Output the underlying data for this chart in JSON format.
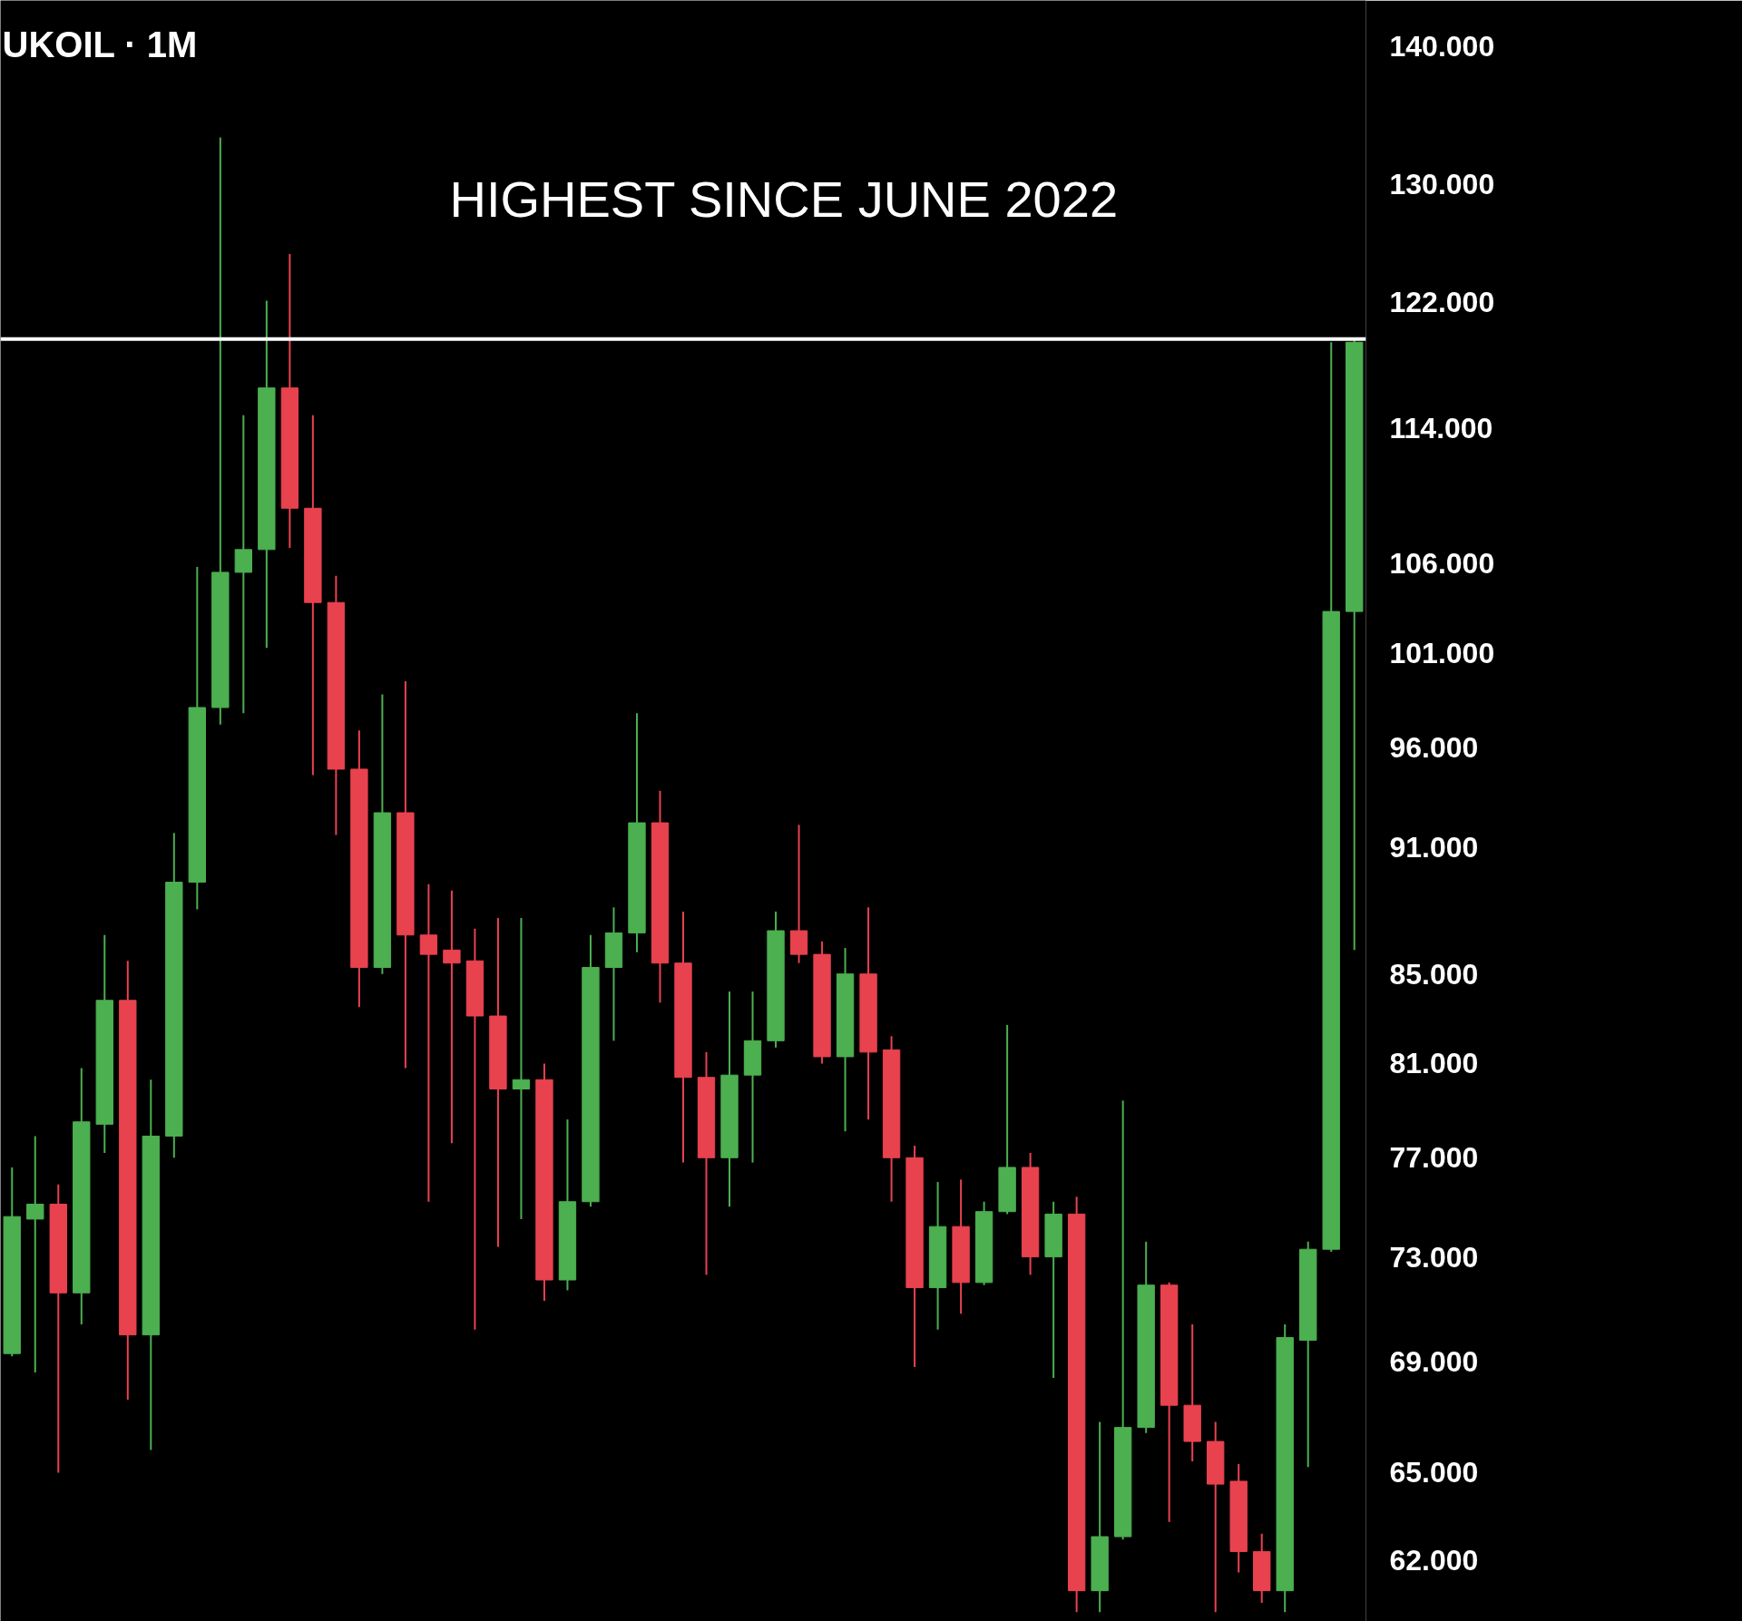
{
  "chart_data": {
    "type": "candlestick",
    "title": "UKOIL · 1M",
    "annotations": [
      "HIGHEST SINCE JUNE 2022"
    ],
    "categories": [
      null,
      null,
      null,
      null,
      null,
      null,
      null,
      null,
      null,
      null,
      null,
      null,
      null,
      null,
      null,
      null,
      null,
      null,
      null,
      null,
      null,
      null,
      null,
      null,
      null,
      null,
      null,
      null,
      null,
      null,
      null,
      null,
      null,
      null,
      null,
      null,
      null,
      null,
      null,
      null,
      null,
      null,
      null,
      null,
      null,
      null,
      null,
      null,
      null,
      null,
      null,
      null,
      null,
      null,
      null,
      null,
      null,
      null,
      null
    ],
    "ohlc": [
      [
        69.3,
        76.6,
        69.2,
        74.6
      ],
      [
        74.5,
        77.9,
        68.6,
        75.1
      ],
      [
        75.1,
        75.9,
        65.0,
        71.6
      ],
      [
        71.6,
        80.8,
        70.4,
        78.5
      ],
      [
        78.4,
        86.8,
        77.2,
        83.8
      ],
      [
        83.8,
        85.6,
        67.6,
        70.0
      ],
      [
        70.0,
        80.3,
        65.8,
        77.9
      ],
      [
        77.9,
        91.7,
        77.0,
        89.3
      ],
      [
        89.3,
        105.8,
        88.0,
        98.1
      ],
      [
        98.1,
        133.3,
        97.2,
        105.5
      ],
      [
        105.5,
        114.8,
        97.8,
        106.8
      ],
      [
        106.8,
        122.1,
        101.3,
        116.5
      ],
      [
        116.5,
        125.2,
        106.9,
        109.2
      ],
      [
        109.2,
        114.8,
        94.6,
        103.8
      ],
      [
        103.8,
        105.3,
        91.6,
        94.9
      ],
      [
        94.9,
        96.9,
        83.5,
        85.3
      ],
      [
        85.3,
        98.8,
        85.0,
        92.7
      ],
      [
        92.7,
        99.5,
        80.8,
        86.8
      ],
      [
        86.8,
        89.2,
        75.2,
        85.9
      ],
      [
        86.1,
        88.9,
        77.6,
        85.5
      ],
      [
        85.6,
        87.1,
        70.2,
        83.1
      ],
      [
        83.1,
        87.6,
        73.4,
        79.9
      ],
      [
        79.9,
        87.6,
        74.5,
        80.3
      ],
      [
        80.3,
        81.0,
        71.3,
        72.1
      ],
      [
        72.1,
        78.6,
        71.7,
        75.2
      ],
      [
        75.2,
        86.8,
        75.0,
        85.3
      ],
      [
        85.3,
        88.1,
        82.0,
        86.9
      ],
      [
        86.9,
        97.8,
        86.0,
        92.2
      ],
      [
        92.2,
        93.8,
        83.7,
        85.5
      ],
      [
        85.5,
        87.9,
        76.8,
        80.4
      ],
      [
        80.4,
        81.5,
        72.3,
        77.0
      ],
      [
        77.0,
        84.2,
        75.0,
        80.5
      ],
      [
        80.5,
        84.2,
        76.8,
        82.0
      ],
      [
        82.0,
        87.9,
        81.7,
        87.0
      ],
      [
        87.0,
        92.1,
        85.5,
        85.9
      ],
      [
        85.9,
        86.5,
        81.0,
        81.3
      ],
      [
        81.3,
        86.2,
        78.1,
        85.0
      ],
      [
        85.0,
        88.1,
        78.6,
        81.5
      ],
      [
        81.6,
        82.2,
        75.2,
        77.0
      ],
      [
        77.0,
        77.5,
        68.8,
        71.8
      ],
      [
        71.8,
        76.0,
        70.2,
        74.2
      ],
      [
        74.2,
        76.1,
        70.8,
        72.0
      ],
      [
        72.0,
        75.2,
        71.9,
        74.8
      ],
      [
        74.8,
        82.7,
        74.7,
        76.6
      ],
      [
        76.6,
        77.2,
        72.3,
        73.0
      ],
      [
        73.0,
        75.2,
        68.4,
        74.7
      ],
      [
        74.7,
        75.4,
        60.3,
        61.0
      ],
      [
        61.0,
        66.8,
        60.3,
        62.8
      ],
      [
        62.8,
        79.4,
        62.7,
        66.6
      ],
      [
        66.6,
        73.6,
        66.4,
        71.9
      ],
      [
        71.9,
        72.0,
        63.3,
        67.4
      ],
      [
        67.4,
        70.4,
        65.4,
        66.1
      ],
      [
        66.1,
        66.8,
        60.3,
        64.6
      ],
      [
        64.7,
        65.3,
        61.6,
        62.3
      ],
      [
        62.3,
        62.9,
        60.6,
        61.0
      ],
      [
        61.0,
        70.4,
        60.3,
        69.9
      ],
      [
        69.8,
        73.6,
        65.2,
        73.3
      ],
      [
        73.3,
        119.4,
        73.2,
        103.3
      ],
      [
        103.3,
        119.7,
        86.1,
        119.4
      ]
    ],
    "colors": [
      "#4caf50",
      "#4caf50",
      "#e8424f",
      "#4caf50",
      "#4caf50",
      "#e8424f",
      "#4caf50",
      "#4caf50",
      "#4caf50",
      "#4caf50",
      "#4caf50",
      "#4caf50",
      "#e8424f",
      "#e8424f",
      "#e8424f",
      "#e8424f",
      "#4caf50",
      "#e8424f",
      "#e8424f",
      "#e8424f",
      "#e8424f",
      "#e8424f",
      "#4caf50",
      "#e8424f",
      "#4caf50",
      "#4caf50",
      "#4caf50",
      "#4caf50",
      "#e8424f",
      "#e8424f",
      "#e8424f",
      "#4caf50",
      "#4caf50",
      "#4caf50",
      "#e8424f",
      "#e8424f",
      "#4caf50",
      "#e8424f",
      "#e8424f",
      "#e8424f",
      "#4caf50",
      "#e8424f",
      "#4caf50",
      "#4caf50",
      "#e8424f",
      "#4caf50",
      "#e8424f",
      "#4caf50",
      "#4caf50",
      "#4caf50",
      "#e8424f",
      "#e8424f",
      "#e8424f",
      "#e8424f",
      "#e8424f",
      "#4caf50",
      "#4caf50",
      "#4caf50",
      "#4caf50"
    ],
    "log": true,
    "ylim": [
      60,
      143.5
    ],
    "yticks": [
      {
        "value": 140,
        "label": "140.000"
      },
      {
        "value": 130,
        "label": "130.000"
      },
      {
        "value": 122,
        "label": "122.000"
      },
      {
        "value": 114,
        "label": "114.000"
      },
      {
        "value": 106,
        "label": "106.000"
      },
      {
        "value": 101,
        "label": "101.000"
      },
      {
        "value": 96,
        "label": "96.000"
      },
      {
        "value": 91,
        "label": "91.000"
      },
      {
        "value": 85,
        "label": "85.000"
      },
      {
        "value": 81,
        "label": "81.000"
      },
      {
        "value": 77,
        "label": "77.000"
      },
      {
        "value": 73,
        "label": "73.000"
      },
      {
        "value": 69,
        "label": "69.000"
      },
      {
        "value": 65,
        "label": "65.000"
      },
      {
        "value": 62,
        "label": "62.000"
      }
    ],
    "ref_lines": [
      {
        "axis": "y",
        "value": 119.6,
        "color": "#ffffff"
      }
    ],
    "grid": false,
    "tick_labels": "y"
  }
}
